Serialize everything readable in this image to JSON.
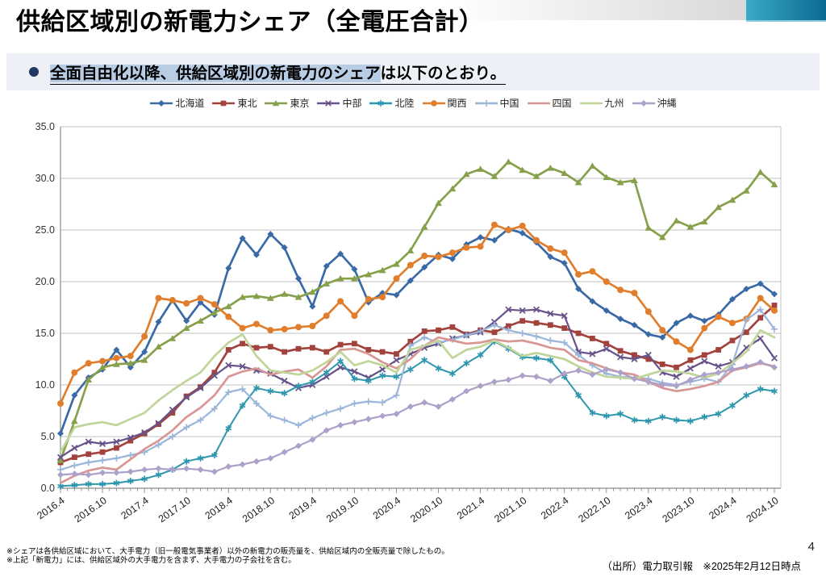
{
  "page": {
    "title": "供給区域別の新電力シェア（全電圧合計）",
    "number": "4"
  },
  "bullet": {
    "highlight": "全面自由化以降、供給区域別の新電力のシェア",
    "rest": "は以下のとおり。"
  },
  "footnotes": [
    "※シェアは各供給区域において、大手電力（旧一般電気事業者）以外の新電力の販売量を、供給区域内の全販売量で除したもの。",
    "※上記「新電力」には、供給区域外の大手電力を含まず、大手電力の子会社を含む。"
  ],
  "source": "（出所）電力取引報　※2025年2月12日時点",
  "decor": {
    "teal_start": "#38aac6",
    "teal_end": "#0c6a92",
    "highlight_bg": "#b8cce4",
    "panel_bg": "#edf1f7",
    "bullet_color": "#1f3864",
    "gridline": "#c0c0c0",
    "axis": "#8a8a8a"
  },
  "chart_data": {
    "type": "line",
    "title": "",
    "xlabel": "",
    "ylabel": "",
    "ylim": [
      0,
      35
    ],
    "y_tick_step": 5,
    "grid": true,
    "legend_position": "top",
    "tick_every": 3,
    "x": [
      "2016.4",
      "2016.6",
      "2016.8",
      "2016.10",
      "2016.12",
      "2017.2",
      "2017.4",
      "2017.6",
      "2017.8",
      "2017.10",
      "2017.12",
      "2018.2",
      "2018.4",
      "2018.6",
      "2018.8",
      "2018.10",
      "2018.12",
      "2019.2",
      "2019.4",
      "2019.6",
      "2019.8",
      "2019.10",
      "2019.12",
      "2020.2",
      "2020.4",
      "2020.6",
      "2020.8",
      "2020.10",
      "2020.12",
      "2021.2",
      "2021.4",
      "2021.6",
      "2021.8",
      "2021.10",
      "2021.12",
      "2022.2",
      "2022.4",
      "2022.6",
      "2022.8",
      "2022.10",
      "2022.12",
      "2023.2",
      "2023.4",
      "2023.6",
      "2023.8",
      "2023.10",
      "2023.12",
      "2024.2",
      "2024.4",
      "2024.6",
      "2024.8",
      "2024.10"
    ],
    "series": [
      {
        "name": "北海道",
        "slug": "hokkaido",
        "color": "#3a6aa6",
        "marker": "diamond",
        "width": 2.7,
        "values": [
          5.3,
          9.0,
          10.7,
          11.5,
          13.4,
          11.7,
          13.2,
          16.1,
          18.2,
          16.2,
          18.0,
          16.8,
          21.3,
          24.2,
          22.6,
          24.6,
          23.3,
          20.3,
          17.6,
          21.5,
          22.7,
          21.2,
          18.0,
          18.9,
          18.7,
          20.1,
          21.4,
          22.6,
          22.2,
          23.6,
          24.3,
          24.0,
          25.1,
          24.7,
          23.8,
          22.4,
          21.8,
          19.3,
          18.1,
          17.2,
          16.4,
          15.8,
          14.9,
          14.6,
          16.0,
          16.7,
          16.2,
          16.8,
          18.3,
          19.3,
          19.8,
          18.8
        ]
      },
      {
        "name": "東北",
        "slug": "tohoku",
        "color": "#a2423c",
        "marker": "square",
        "width": 2.7,
        "values": [
          2.5,
          3.0,
          3.3,
          3.5,
          3.9,
          4.6,
          5.3,
          6.2,
          7.3,
          8.9,
          9.8,
          11.2,
          13.4,
          14.0,
          13.6,
          13.7,
          13.2,
          13.5,
          13.6,
          13.2,
          13.9,
          14.0,
          13.4,
          13.2,
          13.0,
          14.2,
          15.2,
          15.3,
          15.6,
          14.9,
          15.3,
          15.1,
          15.7,
          16.2,
          16.0,
          15.8,
          15.5,
          15.0,
          14.5,
          14.0,
          13.3,
          12.9,
          12.5,
          12.0,
          11.7,
          12.4,
          12.9,
          13.4,
          14.3,
          15.1,
          16.5,
          17.7
        ]
      },
      {
        "name": "東京",
        "slug": "tokyo",
        "color": "#86a04c",
        "marker": "triangle",
        "width": 2.7,
        "values": [
          2.7,
          6.5,
          10.5,
          11.7,
          12.0,
          12.1,
          12.4,
          13.7,
          14.5,
          15.5,
          16.2,
          17.0,
          17.6,
          18.5,
          18.6,
          18.4,
          18.8,
          18.5,
          19.0,
          19.8,
          20.3,
          20.3,
          20.7,
          21.1,
          21.7,
          23.0,
          25.3,
          27.6,
          29.0,
          30.4,
          30.9,
          30.2,
          31.6,
          30.8,
          30.2,
          31.0,
          30.5,
          29.6,
          31.2,
          30.1,
          29.6,
          29.8,
          25.2,
          24.3,
          25.9,
          25.3,
          25.8,
          27.2,
          27.9,
          28.8,
          30.6,
          29.4
        ]
      },
      {
        "name": "中部",
        "slug": "chubu",
        "color": "#67528a",
        "marker": "x",
        "width": 2.2,
        "values": [
          3.0,
          3.9,
          4.5,
          4.3,
          4.5,
          4.9,
          5.4,
          6.3,
          7.6,
          8.8,
          9.7,
          10.9,
          11.9,
          11.8,
          11.4,
          11.1,
          10.4,
          9.7,
          10.0,
          10.8,
          11.7,
          11.3,
          10.7,
          11.5,
          12.4,
          13.0,
          13.6,
          14.0,
          14.5,
          14.8,
          15.1,
          16.1,
          17.3,
          17.2,
          17.3,
          16.9,
          16.7,
          13.2,
          13.0,
          13.5,
          12.7,
          12.5,
          12.9,
          11.2,
          10.8,
          11.6,
          12.3,
          11.8,
          12.2,
          13.6,
          14.5,
          12.6
        ]
      },
      {
        "name": "北陸",
        "slug": "hokuriku",
        "color": "#2e97ad",
        "marker": "asterisk",
        "width": 2.0,
        "values": [
          0.2,
          0.3,
          0.4,
          0.4,
          0.5,
          0.7,
          0.9,
          1.3,
          1.8,
          2.6,
          2.9,
          3.2,
          5.8,
          8.0,
          9.7,
          9.4,
          9.2,
          9.9,
          10.3,
          11.2,
          12.3,
          10.6,
          10.4,
          10.9,
          10.8,
          11.5,
          12.4,
          11.6,
          11.1,
          12.1,
          12.9,
          14.2,
          13.5,
          12.7,
          12.6,
          12.4,
          10.8,
          9.0,
          7.3,
          7.0,
          7.2,
          6.6,
          6.5,
          6.9,
          6.6,
          6.5,
          6.9,
          7.2,
          8.0,
          9.0,
          9.6,
          9.4
        ]
      },
      {
        "name": "関西",
        "slug": "kansai",
        "color": "#e07e2e",
        "marker": "circle",
        "width": 2.7,
        "values": [
          8.2,
          11.2,
          12.1,
          12.3,
          12.6,
          12.8,
          14.7,
          18.4,
          18.2,
          17.9,
          18.4,
          17.8,
          16.6,
          15.5,
          15.9,
          15.3,
          15.4,
          15.6,
          15.7,
          16.7,
          18.1,
          16.7,
          18.3,
          18.5,
          20.3,
          21.6,
          22.5,
          22.4,
          22.8,
          23.3,
          23.4,
          25.5,
          25.0,
          25.4,
          24.0,
          23.2,
          22.8,
          20.7,
          21.0,
          20.0,
          19.2,
          18.9,
          17.1,
          15.3,
          14.2,
          13.4,
          15.5,
          16.6,
          16.0,
          16.4,
          18.4,
          17.2
        ]
      },
      {
        "name": "中国",
        "slug": "chugoku",
        "color": "#9bb6da",
        "marker": "plus",
        "width": 2.2,
        "values": [
          1.8,
          2.2,
          2.5,
          2.7,
          2.9,
          3.2,
          3.5,
          4.2,
          5.0,
          5.9,
          6.6,
          7.7,
          9.3,
          9.6,
          8.2,
          7.0,
          6.6,
          6.1,
          6.8,
          7.3,
          7.7,
          8.2,
          8.4,
          8.3,
          9.0,
          13.8,
          14.6,
          14.1,
          14.4,
          14.8,
          15.2,
          15.8,
          15.3,
          15.0,
          14.7,
          14.3,
          14.1,
          12.9,
          11.9,
          11.1,
          10.8,
          10.7,
          10.6,
          10.2,
          10.0,
          10.3,
          10.6,
          10.3,
          12.0,
          16.3,
          17.3,
          15.4
        ]
      },
      {
        "name": "四国",
        "slug": "shikoku",
        "color": "#d89694",
        "marker": "none",
        "width": 2.7,
        "values": [
          0.5,
          1.2,
          1.7,
          2.0,
          1.8,
          2.8,
          3.8,
          4.6,
          5.6,
          6.9,
          7.8,
          9.0,
          10.8,
          11.3,
          11.6,
          11.0,
          11.3,
          11.5,
          10.7,
          11.8,
          13.4,
          13.5,
          13.0,
          12.2,
          11.6,
          12.5,
          13.8,
          14.6,
          14.3,
          14.0,
          14.1,
          14.4,
          14.2,
          14.3,
          14.0,
          13.6,
          13.4,
          12.4,
          12.1,
          11.6,
          11.2,
          11.0,
          10.3,
          9.7,
          9.4,
          9.6,
          9.9,
          10.3,
          11.4,
          11.7,
          12.1,
          11.8
        ]
      },
      {
        "name": "九州",
        "slug": "kyushu",
        "color": "#c0d59a",
        "marker": "none",
        "width": 2.7,
        "values": [
          3.5,
          5.9,
          6.2,
          6.4,
          6.1,
          6.7,
          7.3,
          8.5,
          9.5,
          10.4,
          11.2,
          12.8,
          14.1,
          14.9,
          12.8,
          11.4,
          11.2,
          11.0,
          11.4,
          12.2,
          13.2,
          11.9,
          12.3,
          11.9,
          11.2,
          13.4,
          13.8,
          14.3,
          12.6,
          13.4,
          13.7,
          14.3,
          13.6,
          12.8,
          13.1,
          12.8,
          12.5,
          11.8,
          11.2,
          10.8,
          10.7,
          10.6,
          11.0,
          11.4,
          11.3,
          11.1,
          10.7,
          11.1,
          12.1,
          13.2,
          15.3,
          14.6
        ]
      },
      {
        "name": "沖縄",
        "slug": "okinawa",
        "color": "#ada0c9",
        "marker": "diamond",
        "width": 2.2,
        "values": [
          1.3,
          1.4,
          1.3,
          1.5,
          1.5,
          1.6,
          1.8,
          1.9,
          1.8,
          1.9,
          1.8,
          1.6,
          2.1,
          2.3,
          2.6,
          2.9,
          3.5,
          4.1,
          4.7,
          5.6,
          6.1,
          6.4,
          6.7,
          7.0,
          7.2,
          7.9,
          8.3,
          7.9,
          8.6,
          9.4,
          9.9,
          10.3,
          10.5,
          10.9,
          10.8,
          10.4,
          11.1,
          11.4,
          11.0,
          11.5,
          11.2,
          10.6,
          10.3,
          10.0,
          9.9,
          10.5,
          11.0,
          11.2,
          11.5,
          11.8,
          12.2,
          11.7
        ]
      }
    ]
  }
}
